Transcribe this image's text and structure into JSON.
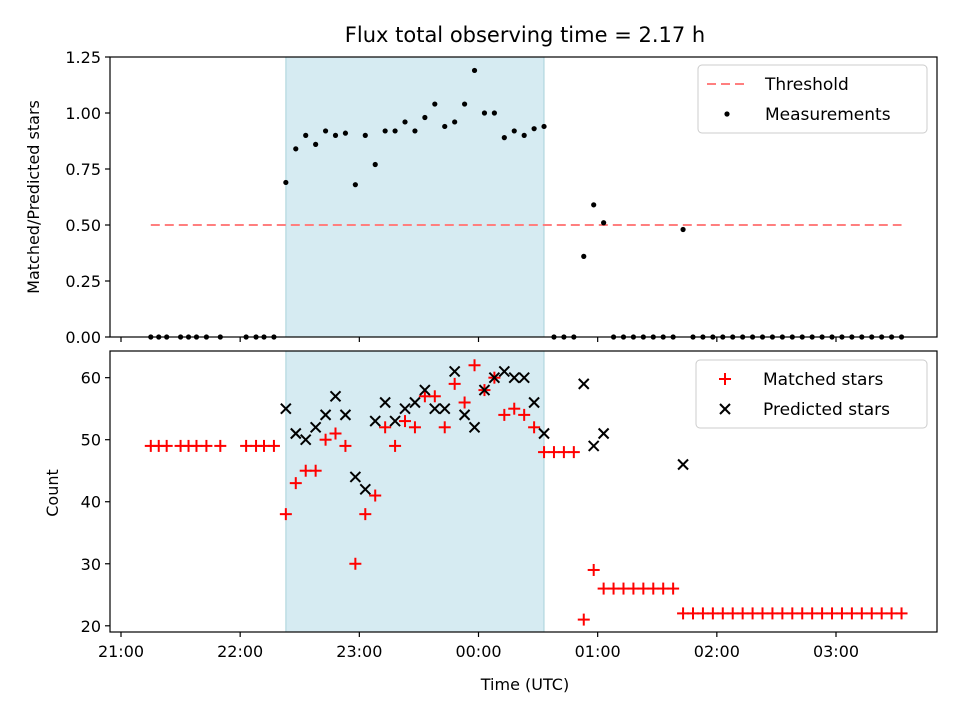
{
  "chart_data": [
    {
      "type": "scatter",
      "title": "Flux total observing time = 2.17 h",
      "ylabel": "Matched/Predicted stars",
      "ylim": [
        0,
        1.25
      ],
      "yticks": [
        0,
        0.25,
        0.5,
        0.75,
        1.0,
        1.25
      ],
      "ytick_labels": [
        "0.00",
        "0.25",
        "0.50",
        "0.75",
        "1.00",
        "1.25"
      ],
      "shaded_span": {
        "start": "22:23",
        "end": "00:33",
        "color": "#add8e6"
      },
      "legend_position": "top-right",
      "legend": [
        {
          "label": "Threshold",
          "marker": "dashed-line",
          "color": "#ff7f7f"
        },
        {
          "label": "Measurements",
          "marker": "dot",
          "color": "#000000"
        }
      ],
      "threshold": {
        "value": 0.5,
        "x_start": "21:15",
        "x_end": "03:33"
      },
      "series": [
        {
          "name": "Measurements",
          "points": [
            [
              "21:15",
              0
            ],
            [
              "21:19",
              0
            ],
            [
              "21:23",
              0
            ],
            [
              "21:30",
              0
            ],
            [
              "21:34",
              0
            ],
            [
              "21:38",
              0
            ],
            [
              "21:43",
              0
            ],
            [
              "21:50",
              0
            ],
            [
              "22:03",
              0
            ],
            [
              "22:08",
              0
            ],
            [
              "22:12",
              0
            ],
            [
              "22:17",
              0
            ],
            [
              "22:23",
              0.69
            ],
            [
              "22:28",
              0.84
            ],
            [
              "22:33",
              0.9
            ],
            [
              "22:38",
              0.86
            ],
            [
              "22:43",
              0.92
            ],
            [
              "22:48",
              0.9
            ],
            [
              "22:53",
              0.91
            ],
            [
              "22:58",
              0.68
            ],
            [
              "23:03",
              0.9
            ],
            [
              "23:08",
              0.77
            ],
            [
              "23:13",
              0.92
            ],
            [
              "23:18",
              0.92
            ],
            [
              "23:23",
              0.96
            ],
            [
              "23:28",
              0.92
            ],
            [
              "23:33",
              0.98
            ],
            [
              "23:38",
              1.04
            ],
            [
              "23:43",
              0.94
            ],
            [
              "23:48",
              0.96
            ],
            [
              "23:53",
              1.04
            ],
            [
              "23:58",
              1.19
            ],
            [
              "00:03",
              1.0
            ],
            [
              "00:08",
              1.0
            ],
            [
              "00:13",
              0.89
            ],
            [
              "00:18",
              0.92
            ],
            [
              "00:23",
              0.9
            ],
            [
              "00:28",
              0.93
            ],
            [
              "00:33",
              0.94
            ],
            [
              "00:38",
              0
            ],
            [
              "00:43",
              0
            ],
            [
              "00:48",
              0
            ],
            [
              "00:53",
              0.36
            ],
            [
              "00:58",
              0.59
            ],
            [
              "01:03",
              0.51
            ],
            [
              "01:08",
              0
            ],
            [
              "01:13",
              0
            ],
            [
              "01:18",
              0
            ],
            [
              "01:23",
              0
            ],
            [
              "01:28",
              0
            ],
            [
              "01:33",
              0
            ],
            [
              "01:38",
              0
            ],
            [
              "01:43",
              0.48
            ],
            [
              "01:48",
              0
            ],
            [
              "01:53",
              0
            ],
            [
              "01:58",
              0
            ],
            [
              "02:03",
              0
            ],
            [
              "02:08",
              0
            ],
            [
              "02:13",
              0
            ],
            [
              "02:18",
              0
            ],
            [
              "02:23",
              0
            ],
            [
              "02:28",
              0
            ],
            [
              "02:33",
              0
            ],
            [
              "02:38",
              0
            ],
            [
              "02:43",
              0
            ],
            [
              "02:48",
              0
            ],
            [
              "02:53",
              0
            ],
            [
              "02:58",
              0
            ],
            [
              "03:03",
              0
            ],
            [
              "03:08",
              0
            ],
            [
              "03:13",
              0
            ],
            [
              "03:18",
              0
            ],
            [
              "03:23",
              0
            ],
            [
              "03:28",
              0
            ],
            [
              "03:33",
              0
            ]
          ]
        }
      ]
    },
    {
      "type": "scatter",
      "xlabel": "Time (UTC)",
      "ylabel": "Count",
      "ylim": [
        19,
        64.3
      ],
      "yticks": [
        20,
        30,
        40,
        50,
        60
      ],
      "ytick_labels": [
        "20",
        "30",
        "40",
        "50",
        "60"
      ],
      "xticks": [
        "21:00",
        "22:00",
        "23:00",
        "00:00",
        "01:00",
        "02:00",
        "03:00"
      ],
      "shaded_span": {
        "start": "22:23",
        "end": "00:33",
        "color": "#add8e6"
      },
      "legend_position": "top-right",
      "legend": [
        {
          "label": "Matched stars",
          "marker": "plus",
          "color": "#ff0000"
        },
        {
          "label": "Predicted stars",
          "marker": "x",
          "color": "#000000"
        }
      ],
      "series": [
        {
          "name": "Matched stars",
          "points": [
            [
              "21:15",
              49
            ],
            [
              "21:19",
              49
            ],
            [
              "21:23",
              49
            ],
            [
              "21:30",
              49
            ],
            [
              "21:34",
              49
            ],
            [
              "21:38",
              49
            ],
            [
              "21:43",
              49
            ],
            [
              "21:50",
              49
            ],
            [
              "22:03",
              49
            ],
            [
              "22:08",
              49
            ],
            [
              "22:12",
              49
            ],
            [
              "22:17",
              49
            ],
            [
              "22:23",
              38
            ],
            [
              "22:28",
              43
            ],
            [
              "22:33",
              45
            ],
            [
              "22:38",
              45
            ],
            [
              "22:43",
              50
            ],
            [
              "22:48",
              51
            ],
            [
              "22:53",
              49
            ],
            [
              "22:58",
              30
            ],
            [
              "23:03",
              38
            ],
            [
              "23:08",
              41
            ],
            [
              "23:13",
              52
            ],
            [
              "23:18",
              49
            ],
            [
              "23:23",
              53
            ],
            [
              "23:28",
              52
            ],
            [
              "23:33",
              57
            ],
            [
              "23:38",
              57
            ],
            [
              "23:43",
              52
            ],
            [
              "23:48",
              59
            ],
            [
              "23:53",
              56
            ],
            [
              "23:58",
              62
            ],
            [
              "00:03",
              58
            ],
            [
              "00:08",
              60
            ],
            [
              "00:13",
              54
            ],
            [
              "00:18",
              55
            ],
            [
              "00:23",
              54
            ],
            [
              "00:28",
              52
            ],
            [
              "00:33",
              48
            ],
            [
              "00:38",
              48
            ],
            [
              "00:43",
              48
            ],
            [
              "00:48",
              48
            ],
            [
              "00:53",
              21
            ],
            [
              "00:58",
              29
            ],
            [
              "01:03",
              26
            ],
            [
              "01:08",
              26
            ],
            [
              "01:13",
              26
            ],
            [
              "01:18",
              26
            ],
            [
              "01:23",
              26
            ],
            [
              "01:28",
              26
            ],
            [
              "01:33",
              26
            ],
            [
              "01:38",
              26
            ],
            [
              "01:43",
              22
            ],
            [
              "01:48",
              22
            ],
            [
              "01:53",
              22
            ],
            [
              "01:58",
              22
            ],
            [
              "02:03",
              22
            ],
            [
              "02:08",
              22
            ],
            [
              "02:13",
              22
            ],
            [
              "02:18",
              22
            ],
            [
              "02:23",
              22
            ],
            [
              "02:28",
              22
            ],
            [
              "02:33",
              22
            ],
            [
              "02:38",
              22
            ],
            [
              "02:43",
              22
            ],
            [
              "02:48",
              22
            ],
            [
              "02:53",
              22
            ],
            [
              "02:58",
              22
            ],
            [
              "03:03",
              22
            ],
            [
              "03:08",
              22
            ],
            [
              "03:13",
              22
            ],
            [
              "03:18",
              22
            ],
            [
              "03:23",
              22
            ],
            [
              "03:28",
              22
            ],
            [
              "03:33",
              22
            ]
          ]
        },
        {
          "name": "Predicted stars",
          "points": [
            [
              "22:23",
              55
            ],
            [
              "22:28",
              51
            ],
            [
              "22:33",
              50
            ],
            [
              "22:38",
              52
            ],
            [
              "22:43",
              54
            ],
            [
              "22:48",
              57
            ],
            [
              "22:53",
              54
            ],
            [
              "22:58",
              44
            ],
            [
              "23:03",
              42
            ],
            [
              "23:08",
              53
            ],
            [
              "23:13",
              56
            ],
            [
              "23:18",
              53
            ],
            [
              "23:23",
              55
            ],
            [
              "23:28",
              56
            ],
            [
              "23:33",
              58
            ],
            [
              "23:38",
              55
            ],
            [
              "23:43",
              55
            ],
            [
              "23:48",
              61
            ],
            [
              "23:53",
              54
            ],
            [
              "23:58",
              52
            ],
            [
              "00:03",
              58
            ],
            [
              "00:08",
              60
            ],
            [
              "00:13",
              61
            ],
            [
              "00:18",
              60
            ],
            [
              "00:23",
              60
            ],
            [
              "00:28",
              56
            ],
            [
              "00:33",
              51
            ],
            [
              "00:53",
              59
            ],
            [
              "00:58",
              49
            ],
            [
              "01:03",
              51
            ],
            [
              "01:43",
              46
            ]
          ]
        }
      ]
    }
  ]
}
